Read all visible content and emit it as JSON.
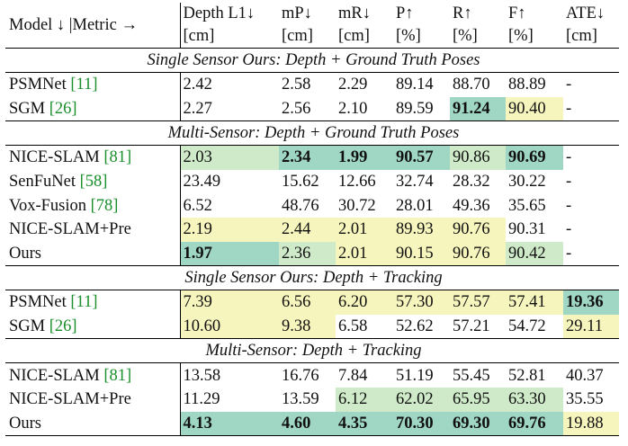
{
  "colors": {
    "best": "#9fd6c4",
    "second": "#cfeac9",
    "third": "#f6f5bd",
    "citation": "#1a8f2c"
  },
  "header": {
    "model_metric": "Model ↓ |Metric →",
    "cols": [
      {
        "name": "Depth L1↓",
        "unit": "[cm]"
      },
      {
        "name": "mP↓",
        "unit": "[cm]"
      },
      {
        "name": "mR↓",
        "unit": "[cm]"
      },
      {
        "name": "P↑",
        "unit": "[%]"
      },
      {
        "name": "R↑",
        "unit": "[%]"
      },
      {
        "name": "F↑",
        "unit": "[%]"
      },
      {
        "name": "ATE↓",
        "unit": "[cm]"
      }
    ]
  },
  "sections": [
    {
      "title": "Single Sensor Ours: Depth + Ground Truth Poses",
      "rows": [
        {
          "model": "PSMNet",
          "cite": "[11]",
          "cells": [
            {
              "v": "2.42",
              "c": "",
              "b": false
            },
            {
              "v": "2.58",
              "c": "",
              "b": false
            },
            {
              "v": "2.29",
              "c": "",
              "b": false
            },
            {
              "v": "89.14",
              "c": "",
              "b": false
            },
            {
              "v": "88.70",
              "c": "",
              "b": false
            },
            {
              "v": "88.89",
              "c": "",
              "b": false
            },
            {
              "v": "-",
              "c": "",
              "b": false
            }
          ]
        },
        {
          "model": "SGM",
          "cite": "[26]",
          "cells": [
            {
              "v": "2.27",
              "c": "",
              "b": false
            },
            {
              "v": "2.56",
              "c": "",
              "b": false
            },
            {
              "v": "2.10",
              "c": "",
              "b": false
            },
            {
              "v": "89.59",
              "c": "",
              "b": false
            },
            {
              "v": "91.24",
              "c": "g1",
              "b": true
            },
            {
              "v": "90.40",
              "c": "y",
              "b": false
            },
            {
              "v": "-",
              "c": "",
              "b": false
            }
          ]
        }
      ]
    },
    {
      "title": "Multi-Sensor: Depth + Ground Truth Poses",
      "rows": [
        {
          "model": "NICE-SLAM",
          "cite": "[81]",
          "cells": [
            {
              "v": "2.03",
              "c": "g2",
              "b": false
            },
            {
              "v": "2.34",
              "c": "g1",
              "b": true
            },
            {
              "v": "1.99",
              "c": "g1",
              "b": true
            },
            {
              "v": "90.57",
              "c": "g1",
              "b": true
            },
            {
              "v": "90.86",
              "c": "g2",
              "b": false
            },
            {
              "v": "90.69",
              "c": "g1",
              "b": true
            },
            {
              "v": "-",
              "c": "",
              "b": false
            }
          ]
        },
        {
          "model": "SenFuNet",
          "cite": "[58]",
          "cells": [
            {
              "v": "23.49",
              "c": "",
              "b": false
            },
            {
              "v": "15.62",
              "c": "",
              "b": false
            },
            {
              "v": "12.66",
              "c": "",
              "b": false
            },
            {
              "v": "32.74",
              "c": "",
              "b": false
            },
            {
              "v": "28.32",
              "c": "",
              "b": false
            },
            {
              "v": "30.22",
              "c": "",
              "b": false
            },
            {
              "v": "-",
              "c": "",
              "b": false
            }
          ]
        },
        {
          "model": "Vox-Fusion",
          "cite": "[78]",
          "cells": [
            {
              "v": "6.52",
              "c": "",
              "b": false
            },
            {
              "v": "48.76",
              "c": "",
              "b": false
            },
            {
              "v": "30.72",
              "c": "",
              "b": false
            },
            {
              "v": "28.01",
              "c": "",
              "b": false
            },
            {
              "v": "49.36",
              "c": "",
              "b": false
            },
            {
              "v": "35.65",
              "c": "",
              "b": false
            },
            {
              "v": "-",
              "c": "",
              "b": false
            }
          ]
        },
        {
          "model": "NICE-SLAM+Pre",
          "cite": "",
          "cells": [
            {
              "v": "2.19",
              "c": "y",
              "b": false
            },
            {
              "v": "2.44",
              "c": "y",
              "b": false
            },
            {
              "v": "2.01",
              "c": "y",
              "b": false
            },
            {
              "v": "89.93",
              "c": "y",
              "b": false
            },
            {
              "v": "90.76",
              "c": "y",
              "b": false
            },
            {
              "v": "90.31",
              "c": "",
              "b": false
            },
            {
              "v": "-",
              "c": "",
              "b": false
            }
          ]
        },
        {
          "model": "Ours",
          "cite": "",
          "cells": [
            {
              "v": "1.97",
              "c": "g1",
              "b": true
            },
            {
              "v": "2.36",
              "c": "g2",
              "b": false
            },
            {
              "v": "2.01",
              "c": "y",
              "b": false
            },
            {
              "v": "90.15",
              "c": "y",
              "b": false
            },
            {
              "v": "90.76",
              "c": "y",
              "b": false
            },
            {
              "v": "90.42",
              "c": "g2",
              "b": false
            },
            {
              "v": "-",
              "c": "",
              "b": false
            }
          ]
        }
      ]
    },
    {
      "title": "Single Sensor Ours: Depth + Tracking",
      "rows": [
        {
          "model": "PSMNet",
          "cite": "[11]",
          "cells": [
            {
              "v": "7.39",
              "c": "y",
              "b": false
            },
            {
              "v": "6.56",
              "c": "y",
              "b": false
            },
            {
              "v": "6.20",
              "c": "y",
              "b": false
            },
            {
              "v": "57.30",
              "c": "y",
              "b": false
            },
            {
              "v": "57.57",
              "c": "y",
              "b": false
            },
            {
              "v": "57.41",
              "c": "y",
              "b": false
            },
            {
              "v": "19.36",
              "c": "g1",
              "b": true
            }
          ]
        },
        {
          "model": "SGM",
          "cite": "[26]",
          "cells": [
            {
              "v": "10.60",
              "c": "y",
              "b": false
            },
            {
              "v": "9.38",
              "c": "y",
              "b": false
            },
            {
              "v": "6.58",
              "c": "",
              "b": false
            },
            {
              "v": "52.62",
              "c": "",
              "b": false
            },
            {
              "v": "57.21",
              "c": "",
              "b": false
            },
            {
              "v": "54.72",
              "c": "",
              "b": false
            },
            {
              "v": "29.11",
              "c": "y",
              "b": false
            }
          ]
        }
      ]
    },
    {
      "title": "Multi-Sensor: Depth + Tracking",
      "rows": [
        {
          "model": "NICE-SLAM",
          "cite": "[81]",
          "cells": [
            {
              "v": "13.58",
              "c": "",
              "b": false
            },
            {
              "v": "16.76",
              "c": "",
              "b": false
            },
            {
              "v": "7.84",
              "c": "",
              "b": false
            },
            {
              "v": "51.19",
              "c": "",
              "b": false
            },
            {
              "v": "55.45",
              "c": "",
              "b": false
            },
            {
              "v": "52.81",
              "c": "",
              "b": false
            },
            {
              "v": "40.37",
              "c": "",
              "b": false
            }
          ]
        },
        {
          "model": "NICE-SLAM+Pre",
          "cite": "",
          "cells": [
            {
              "v": "11.29",
              "c": "",
              "b": false
            },
            {
              "v": "13.59",
              "c": "",
              "b": false
            },
            {
              "v": "6.12",
              "c": "g2",
              "b": false
            },
            {
              "v": "62.02",
              "c": "g2",
              "b": false
            },
            {
              "v": "65.95",
              "c": "g2",
              "b": false
            },
            {
              "v": "63.30",
              "c": "g2",
              "b": false
            },
            {
              "v": "35.55",
              "c": "",
              "b": false
            }
          ]
        },
        {
          "model": "Ours",
          "cite": "",
          "cells": [
            {
              "v": "4.13",
              "c": "g1",
              "b": true
            },
            {
              "v": "4.60",
              "c": "g1",
              "b": true
            },
            {
              "v": "4.35",
              "c": "g1",
              "b": true
            },
            {
              "v": "70.30",
              "c": "g1",
              "b": true
            },
            {
              "v": "69.30",
              "c": "g1",
              "b": true
            },
            {
              "v": "69.76",
              "c": "g1",
              "b": true
            },
            {
              "v": "19.88",
              "c": "y",
              "b": false
            }
          ]
        }
      ]
    }
  ]
}
